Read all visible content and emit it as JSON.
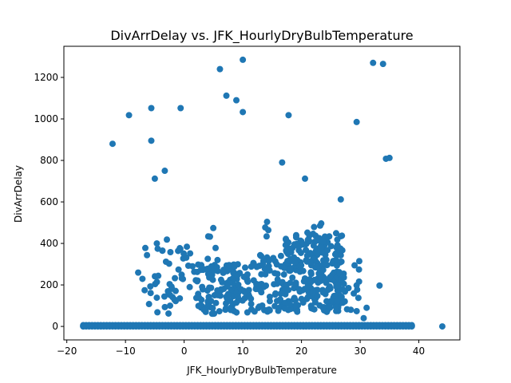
{
  "chart_data": {
    "type": "scatter",
    "title": "DivArrDelay vs. JFK_HourlyDryBulbTemperature",
    "xlabel": "JFK_HourlyDryBulbTemperature",
    "ylabel": "DivArrDelay",
    "xlim": [
      -20.5,
      47.0
    ],
    "ylim": [
      -65,
      1350
    ],
    "xticks": [
      -20,
      -10,
      0,
      10,
      20,
      30,
      40
    ],
    "yticks": [
      0,
      200,
      400,
      600,
      800,
      1000,
      1200
    ],
    "grid": false,
    "marker_color": "#1f77b4",
    "outliers": [
      [
        -12.2,
        880
      ],
      [
        -9.4,
        1018
      ],
      [
        -5.6,
        1052
      ],
      [
        -5.6,
        895
      ],
      [
        -0.6,
        1052
      ],
      [
        -5.0,
        712
      ],
      [
        -3.3,
        750
      ],
      [
        6.1,
        1240
      ],
      [
        7.2,
        1112
      ],
      [
        8.9,
        1090
      ],
      [
        10.0,
        1285
      ],
      [
        10.0,
        1033
      ],
      [
        16.7,
        790
      ],
      [
        17.8,
        1018
      ],
      [
        20.6,
        712
      ],
      [
        26.7,
        612
      ],
      [
        29.4,
        985
      ],
      [
        32.2,
        1270
      ],
      [
        33.9,
        1265
      ],
      [
        34.4,
        808
      ],
      [
        35.0,
        812
      ],
      [
        33.3,
        197
      ],
      [
        31.1,
        90
      ],
      [
        30.6,
        40
      ],
      [
        44.0,
        0
      ],
      [
        -17.2,
        0
      ]
    ],
    "clusters": [
      {
        "x_range": [
          -8.0,
          0.0
        ],
        "y_range": [
          60,
          420
        ],
        "count": 40
      },
      {
        "x_range": [
          -1.0,
          2.0
        ],
        "y_range": [
          50,
          400
        ],
        "count": 15
      },
      {
        "x_range": [
          2.0,
          11.0
        ],
        "y_range": [
          60,
          300
        ],
        "count": 130
      },
      {
        "x_range": [
          4.0,
          6.0
        ],
        "y_range": [
          300,
          490
        ],
        "count": 6
      },
      {
        "x_range": [
          11.0,
          17.0
        ],
        "y_range": [
          70,
          350
        ],
        "count": 70
      },
      {
        "x_range": [
          13.5,
          14.5
        ],
        "y_range": [
          430,
          580
        ],
        "count": 4
      },
      {
        "x_range": [
          17.0,
          27.0
        ],
        "y_range": [
          70,
          450
        ],
        "count": 260
      },
      {
        "x_range": [
          21.0,
          25.0
        ],
        "y_range": [
          400,
          500
        ],
        "count": 8
      },
      {
        "x_range": [
          25.0,
          30.0
        ],
        "y_range": [
          60,
          330
        ],
        "count": 25
      }
    ],
    "baseline": {
      "x_range": [
        -17.2,
        39.0
      ],
      "step": 0.5,
      "y_values": [
        0,
        3,
        6
      ]
    }
  }
}
